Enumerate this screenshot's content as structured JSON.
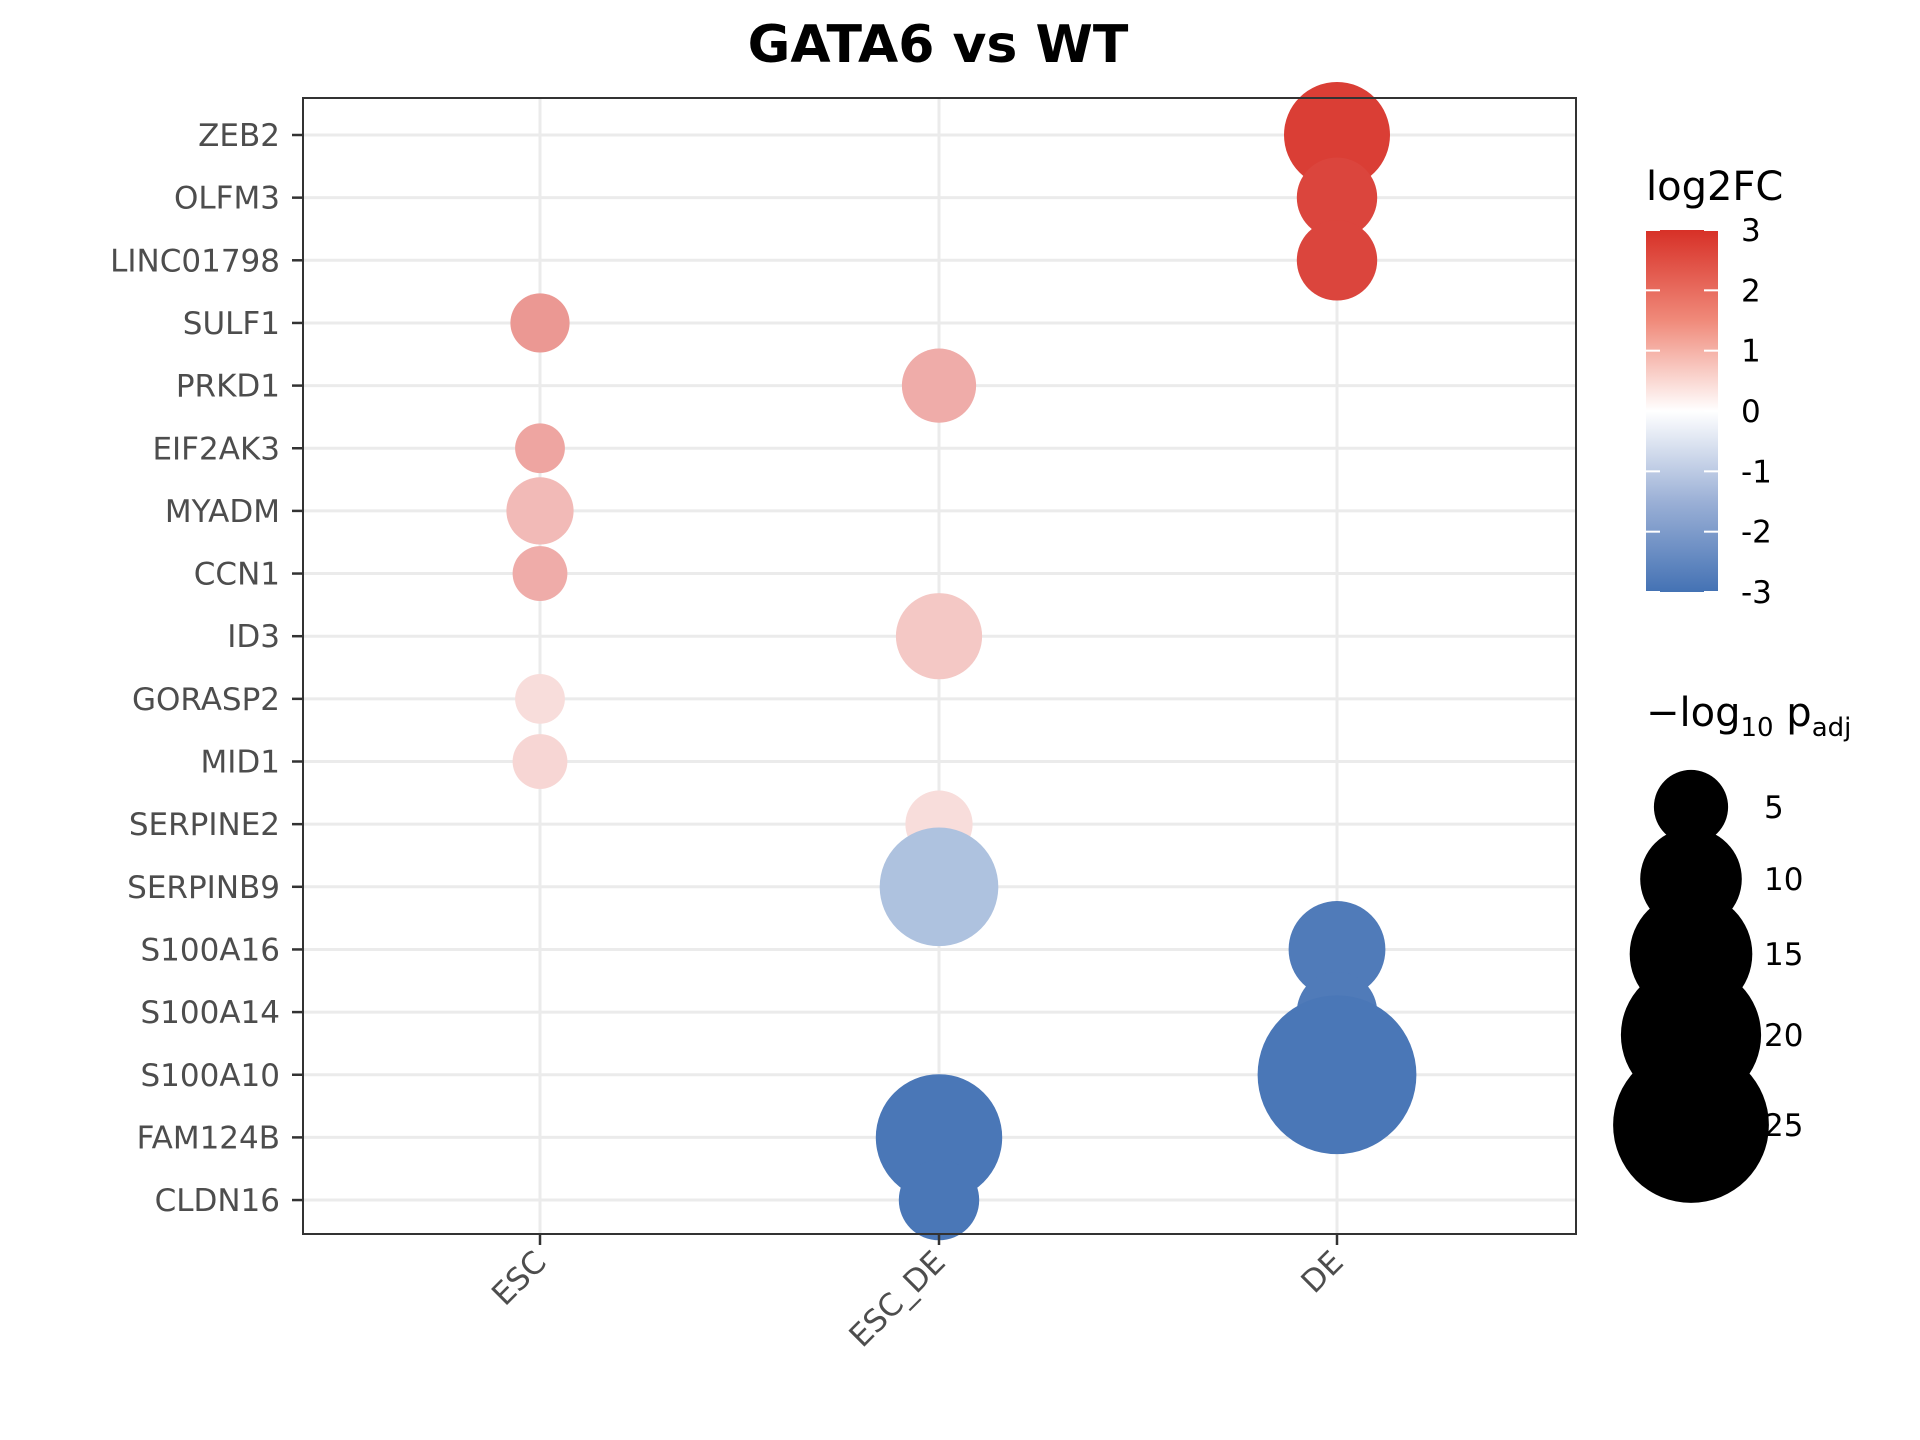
{
  "chart_data": {
    "type": "scatter",
    "title": "GATA6 vs WT",
    "xlabel": "",
    "ylabel": "",
    "categories_x": [
      "ESC",
      "ESC_DE",
      "DE"
    ],
    "categories_y": [
      "ZEB2",
      "OLFM3",
      "LINC01798",
      "SULF1",
      "PRKD1",
      "EIF2AK3",
      "MYADM",
      "CCN1",
      "ID3",
      "GORASP2",
      "MID1",
      "SERPINE2",
      "SERPINB9",
      "S100A16",
      "S100A14",
      "S100A10",
      "FAM124B",
      "CLDN16"
    ],
    "grid": true,
    "points": [
      {
        "gene": "ZEB2",
        "condition": "DE",
        "log2FC": 2.8,
        "neglog10padj": 11
      },
      {
        "gene": "OLFM3",
        "condition": "DE",
        "log2FC": 2.7,
        "neglog10padj": 6
      },
      {
        "gene": "LINC01798",
        "condition": "DE",
        "log2FC": 2.7,
        "neglog10padj": 6
      },
      {
        "gene": "SULF1",
        "condition": "ESC",
        "log2FC": 1.5,
        "neglog10padj": 3
      },
      {
        "gene": "PRKD1",
        "condition": "ESC_DE",
        "log2FC": 1.2,
        "neglog10padj": 5
      },
      {
        "gene": "EIF2AK3",
        "condition": "ESC",
        "log2FC": 1.3,
        "neglog10padj": 2
      },
      {
        "gene": "MYADM",
        "condition": "ESC",
        "log2FC": 1.0,
        "neglog10padj": 4
      },
      {
        "gene": "CCN1",
        "condition": "ESC",
        "log2FC": 1.2,
        "neglog10padj": 2.5
      },
      {
        "gene": "ID3",
        "condition": "ESC_DE",
        "log2FC": 0.8,
        "neglog10padj": 7
      },
      {
        "gene": "GORASP2",
        "condition": "ESC",
        "log2FC": 0.5,
        "neglog10padj": 2
      },
      {
        "gene": "MID1",
        "condition": "ESC",
        "log2FC": 0.6,
        "neglog10padj": 2.5
      },
      {
        "gene": "SERPINE2",
        "condition": "ESC_DE",
        "log2FC": 0.5,
        "neglog10padj": 4
      },
      {
        "gene": "SERPINB9",
        "condition": "ESC_DE",
        "log2FC": -1.3,
        "neglog10padj": 14
      },
      {
        "gene": "S100A16",
        "condition": "DE",
        "log2FC": -2.8,
        "neglog10padj": 9
      },
      {
        "gene": "S100A14",
        "condition": "DE",
        "log2FC": -2.8,
        "neglog10padj": 6
      },
      {
        "gene": "S100A10",
        "condition": "DE",
        "log2FC": -2.9,
        "neglog10padj": 26
      },
      {
        "gene": "FAM124B",
        "condition": "ESC_DE",
        "log2FC": -2.9,
        "neglog10padj": 16
      },
      {
        "gene": "CLDN16",
        "condition": "ESC_DE",
        "log2FC": -2.9,
        "neglog10padj": 6
      }
    ],
    "color_legend": {
      "title": "log2FC",
      "ticks": [
        3,
        2,
        1,
        0,
        -1,
        -2,
        -3
      ],
      "tick_labels": [
        "3",
        "2",
        "1",
        "0",
        "-1",
        "-2",
        "-3"
      ],
      "range": [
        -3,
        3
      ],
      "colors": {
        "high": "#d73027",
        "mid": "#ffffff",
        "low": "#4472b4"
      }
    },
    "size_legend": {
      "title_prefix": "−log",
      "title_sub": "10",
      "title_mid": " p",
      "title_sub2": "adj",
      "values": [
        5,
        10,
        15,
        20,
        25
      ],
      "labels": [
        "5",
        "10",
        "15",
        "20",
        "25"
      ]
    }
  }
}
